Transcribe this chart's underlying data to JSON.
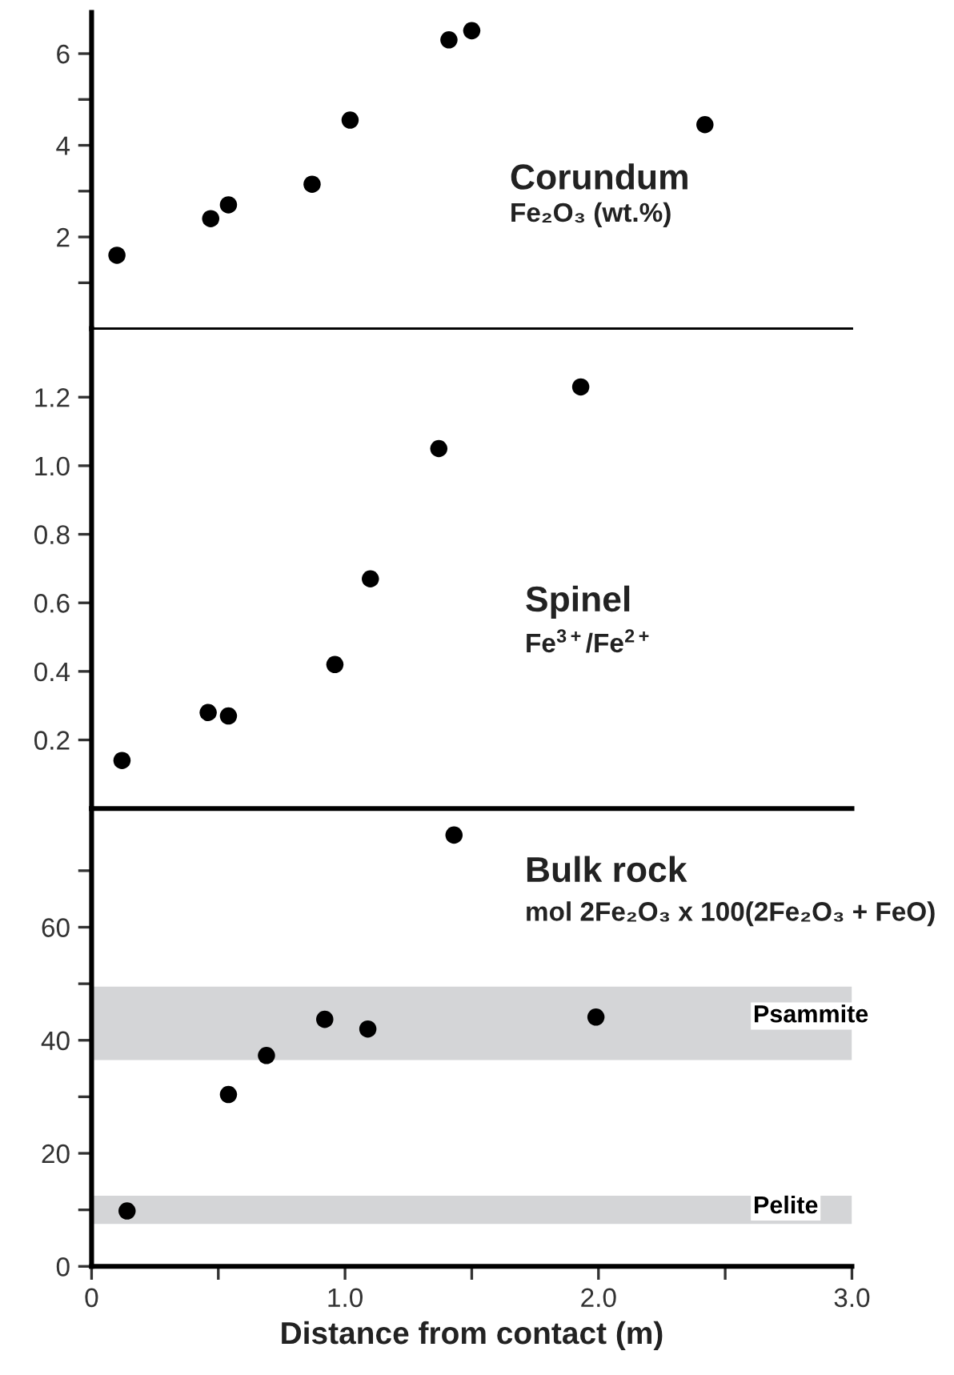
{
  "chart_data": [
    {
      "type": "scatter",
      "annotations": [
        "Corundum",
        "Fe₂O₃ (wt.%)"
      ],
      "marker": "circle",
      "tick_labels": "y",
      "xlim": [
        0,
        3.0
      ],
      "ylim": [
        0,
        6.9
      ],
      "yticks": [
        {
          "value": 1,
          "label": null
        },
        2,
        {
          "value": 3,
          "label": null
        },
        4,
        {
          "value": 5,
          "label": null
        },
        6
      ],
      "series": [
        {
          "color": "#000000",
          "x": [
            0.1,
            0.47,
            0.54,
            0.87,
            1.02,
            1.41,
            1.5,
            2.42
          ],
          "values": [
            1.6,
            2.4,
            2.7,
            3.15,
            4.55,
            6.3,
            6.5,
            4.45
          ]
        }
      ]
    },
    {
      "type": "scatter",
      "annotations": [
        "Spinel",
        "Fe$^{3+}$/Fe$^{2+}$"
      ],
      "marker": "circle",
      "tick_labels": "y",
      "xlim": [
        0,
        3.0
      ],
      "ylim": [
        0,
        1.4
      ],
      "yticks": [
        0.2,
        0.4,
        0.6,
        0.8,
        {
          "value": 1.0,
          "label": "1.0"
        },
        1.2
      ],
      "series": [
        {
          "color": "#000000",
          "x": [
            0.12,
            0.46,
            0.54,
            0.96,
            1.1,
            1.37,
            1.93
          ],
          "values": [
            0.14,
            0.28,
            0.27,
            0.42,
            0.67,
            1.05,
            1.23
          ]
        }
      ]
    },
    {
      "type": "scatter",
      "annotations": [
        "Bulk rock",
        "mol 2Fe₂O₃ x 100(2Fe₂O₃ + FeO)"
      ],
      "marker": "circle",
      "xlabel": "Distance from contact (m)",
      "xlim": [
        0,
        3.0
      ],
      "xticks": [
        0,
        {
          "value": 0.5,
          "label": null
        },
        {
          "value": 1.0,
          "label": "1.0"
        },
        {
          "value": 1.5,
          "label": null
        },
        {
          "value": 2.0,
          "label": "2.0"
        },
        {
          "value": 2.5,
          "label": null
        },
        {
          "value": 3.0,
          "label": "3.0"
        }
      ],
      "ylim": [
        0,
        81
      ],
      "yticks": [
        0,
        {
          "value": 10,
          "label": null
        },
        20,
        {
          "value": 30,
          "label": null
        },
        40,
        {
          "value": 50,
          "label": null
        },
        60,
        {
          "value": 70,
          "label": null
        }
      ],
      "bands": [
        {
          "axis": "y",
          "from": 36.5,
          "to": 49.5,
          "label": "Psammite",
          "color": "#d4d5d7"
        },
        {
          "axis": "y",
          "from": 7.5,
          "to": 12.5,
          "label": "Pelite",
          "color": "#d4d5d7"
        }
      ],
      "series": [
        {
          "color": "#000000",
          "x": [
            0.14,
            0.54,
            0.69,
            0.92,
            1.09,
            1.43,
            1.99
          ],
          "values": [
            9.8,
            30.4,
            37.3,
            43.7,
            42.0,
            76.3,
            44.1
          ]
        }
      ]
    }
  ]
}
